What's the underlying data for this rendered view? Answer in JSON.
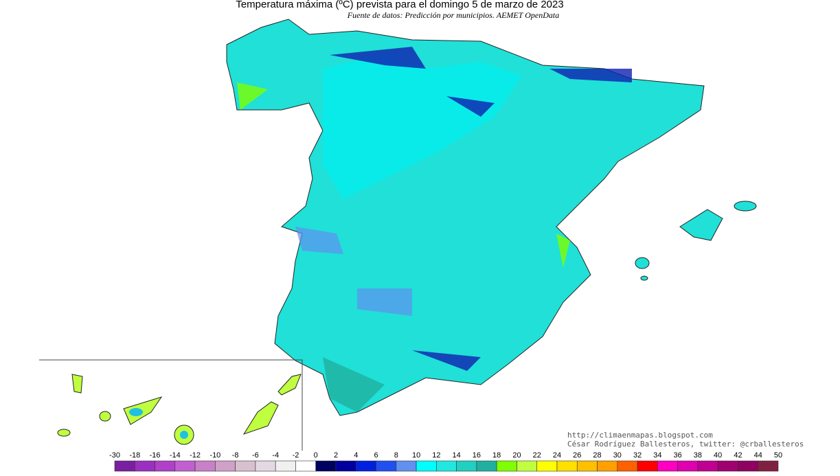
{
  "header": {
    "title": "Temperatura máxima (ºC) prevista para el domingo 5 de marzo de 2023",
    "subtitle": "Fuente de datos: Predicción por municipios. AEMET OpenData"
  },
  "credits": [
    "http://climaenmapas.blogspot.com",
    "César Rodríguez Ballesteros, twitter: @crballesteros"
  ],
  "legend": {
    "ticks": [
      -30,
      -18,
      -16,
      -14,
      -12,
      -10,
      -8,
      -6,
      -4,
      -2,
      0,
      2,
      4,
      6,
      8,
      10,
      12,
      14,
      16,
      18,
      20,
      22,
      24,
      26,
      28,
      30,
      32,
      34,
      36,
      38,
      40,
      42,
      44,
      50
    ],
    "colors": [
      "#7a1fa0",
      "#9a30c0",
      "#b040c8",
      "#c060d0",
      "#c880c8",
      "#d0a0c8",
      "#d8c0d0",
      "#e4d8e4",
      "#f0f0f0",
      "#ffffff",
      "#000060",
      "#0000a0",
      "#0020e0",
      "#2050f0",
      "#6090f0",
      "#00ffff",
      "#20e8e0",
      "#20d0c0",
      "#20b0a0",
      "#80ff00",
      "#c0ff40",
      "#ffff00",
      "#ffe000",
      "#ffc000",
      "#ffa000",
      "#ff6000",
      "#ff0000",
      "#ff00c0",
      "#e000b0",
      "#c00090",
      "#a00070",
      "#900060",
      "#802040"
    ]
  }
}
